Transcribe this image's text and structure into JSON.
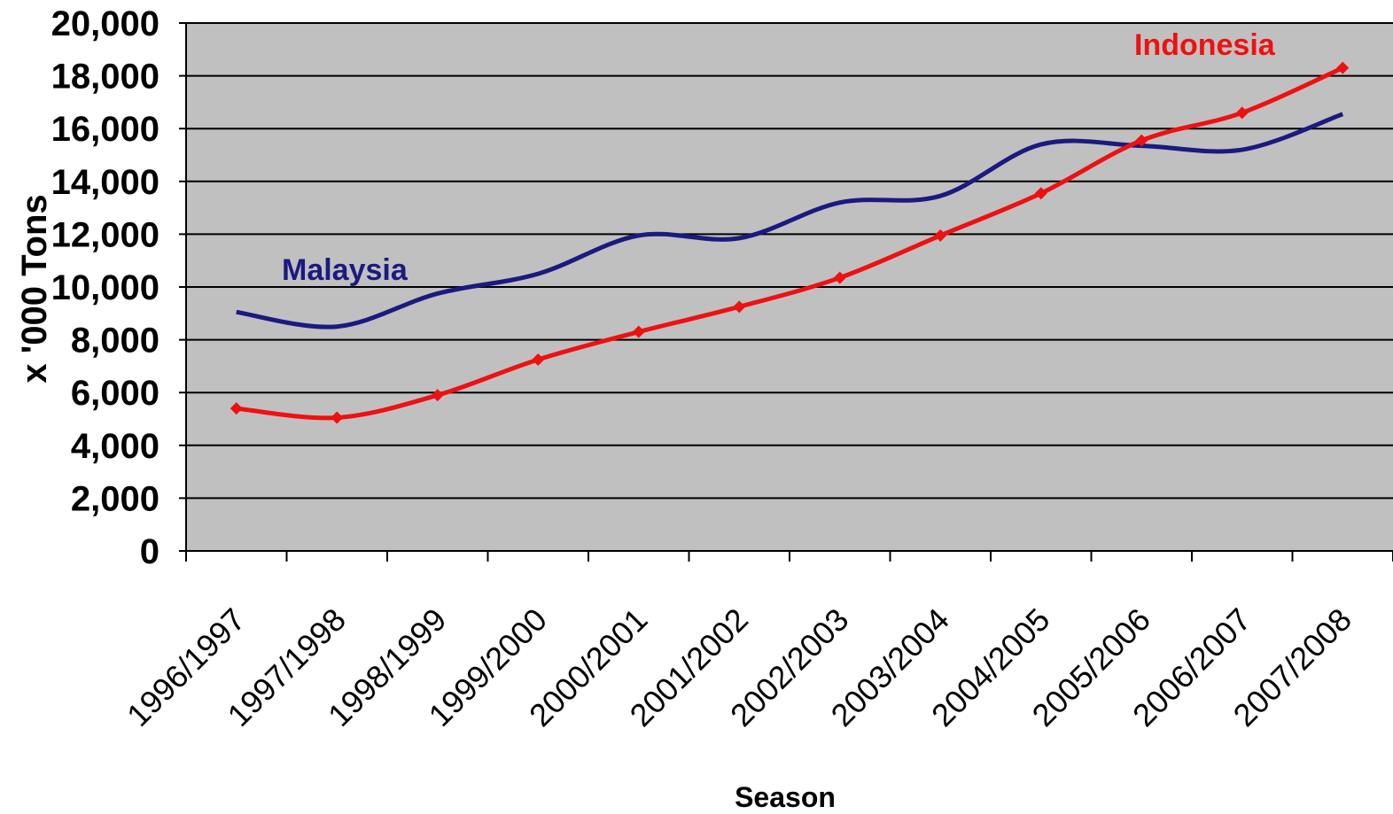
{
  "chart_data": {
    "type": "line",
    "title": "",
    "xlabel": "Season",
    "ylabel": "x '000 Tons",
    "ylim": [
      0,
      20000
    ],
    "yticks": [
      0,
      2000,
      4000,
      6000,
      8000,
      10000,
      12000,
      14000,
      16000,
      18000,
      20000
    ],
    "ytick_labels": [
      "0",
      "2,000",
      "4,000",
      "6,000",
      "8,000",
      "10,000",
      "12,000",
      "14,000",
      "16,000",
      "18,000",
      "20,000"
    ],
    "categories": [
      "1996/1997",
      "1997/1998",
      "1998/1999",
      "1999/2000",
      "2000/2001",
      "2001/2002",
      "2002/2003",
      "2003/2004",
      "2004/2005",
      "2005/2006",
      "2006/2007",
      "2007/2008"
    ],
    "grid": true,
    "background": "#c0c0c0",
    "series": [
      {
        "name": "Malaysia",
        "color": "#1a1a80",
        "markers": false,
        "values": [
          9050,
          8500,
          9750,
          10500,
          11950,
          11850,
          13200,
          13450,
          15400,
          15350,
          15200,
          16550
        ]
      },
      {
        "name": "Indonesia",
        "color": "#ee1111",
        "markers": true,
        "values": [
          5400,
          5050,
          5900,
          7250,
          8300,
          9250,
          10350,
          11950,
          13550,
          15550,
          16600,
          18300
        ]
      }
    ]
  }
}
